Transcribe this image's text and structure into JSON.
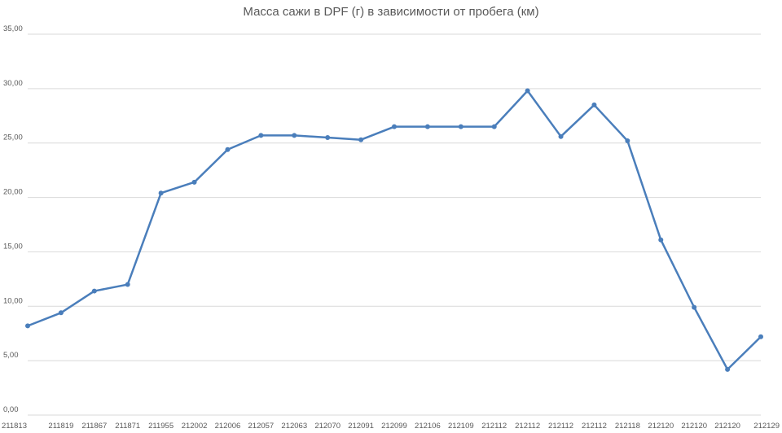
{
  "chart_data": {
    "type": "line",
    "title": "Масса сажи в DPF (г) в зависимости от пробега (км)",
    "xlabel": "",
    "ylabel": "",
    "categories": [
      "211813",
      "211819",
      "211867",
      "211871",
      "211955",
      "212002",
      "212006",
      "212057",
      "212063",
      "212070",
      "212091",
      "212099",
      "212106",
      "212109",
      "212112",
      "212112",
      "212112",
      "212112",
      "212118",
      "212120",
      "212120",
      "212120",
      "212129"
    ],
    "series": [
      {
        "values": [
          8.2,
          9.4,
          11.4,
          12.0,
          20.4,
          21.4,
          24.4,
          25.7,
          25.7,
          25.5,
          25.3,
          26.5,
          26.5,
          26.5,
          26.5,
          29.8,
          25.6,
          28.5,
          25.2,
          16.1,
          9.9,
          4.2,
          7.2
        ]
      }
    ],
    "ylim": [
      0,
      35
    ],
    "yticks": [
      "0,00",
      "5,00",
      "10,00",
      "15,00",
      "20,00",
      "25,00",
      "30,00",
      "35,00"
    ],
    "ytick_values": [
      0,
      5,
      10,
      15,
      20,
      25,
      30,
      35
    ],
    "grid": true,
    "legend": "none",
    "colors": {
      "series": "#4a7ebb",
      "grid": "#d9d9d9",
      "text": "#595959"
    }
  }
}
